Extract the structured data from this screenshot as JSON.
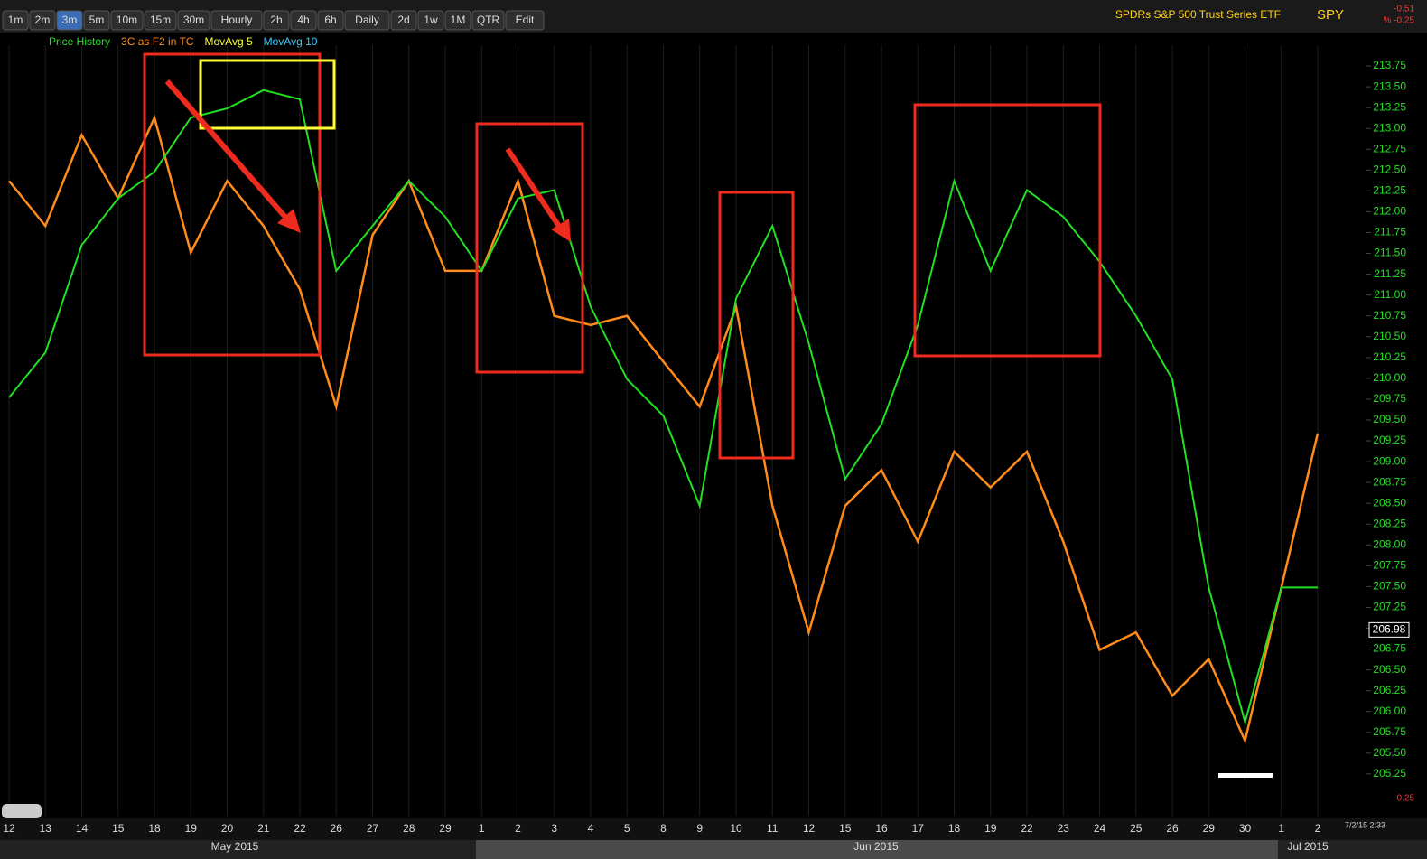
{
  "toolbar": {
    "buttons": [
      "1m",
      "2m",
      "3m",
      "5m",
      "10m",
      "15m",
      "30m",
      "Hourly",
      "2h",
      "4h",
      "6h",
      "Daily",
      "2d",
      "1w",
      "1M",
      "QTR",
      "Edit"
    ]
  },
  "header": {
    "title": "SPDRs S&P 500 Trust Series ETF",
    "symbol": "SPY",
    "change": "-0.51",
    "change_pct": "% -0.25",
    "scale_note": "0.25",
    "timestamp": "7/2/15 2:33"
  },
  "chart_data": {
    "type": "line",
    "categories": [
      "12",
      "13",
      "14",
      "15",
      "18",
      "19",
      "20",
      "21",
      "22",
      "26",
      "27",
      "28",
      "29",
      "1",
      "2",
      "3",
      "4",
      "5",
      "8",
      "9",
      "10",
      "11",
      "12",
      "15",
      "16",
      "17",
      "18",
      "19",
      "22",
      "23",
      "24",
      "25",
      "26",
      "29",
      "30",
      "1",
      "2"
    ],
    "months": [
      "May 2015",
      "Jun 2015",
      "Jul 2015"
    ],
    "series": [
      {
        "name": "Price History",
        "color": "#22e022",
        "values": [
          209.77,
          210.31,
          211.6,
          212.16,
          212.48,
          213.13,
          213.24,
          213.46,
          213.35,
          211.29,
          211.83,
          212.37,
          211.94,
          211.29,
          212.16,
          212.26,
          210.86,
          209.99,
          209.55,
          208.47,
          210.96,
          211.83,
          210.42,
          208.79,
          209.45,
          210.64,
          212.37,
          211.29,
          212.26,
          211.94,
          211.4,
          210.75,
          209.99,
          207.49,
          205.87,
          207.49,
          207.49
        ]
      },
      {
        "name": "3C as F2 in TC",
        "color": "#ff8c1a",
        "values": [
          212.37,
          211.83,
          212.92,
          212.16,
          213.13,
          211.51,
          212.37,
          211.83,
          211.07,
          209.66,
          211.72,
          212.37,
          211.29,
          211.29,
          212.37,
          210.75,
          210.64,
          210.75,
          210.2,
          209.66,
          210.86,
          208.47,
          206.95,
          208.47,
          208.9,
          208.04,
          209.12,
          208.69,
          209.12,
          208.04,
          206.74,
          206.95,
          206.19,
          206.63,
          205.65,
          207.49,
          209.34
        ]
      }
    ],
    "indicators": [
      {
        "name": "MovAvg 5",
        "color": "#ffff33"
      },
      {
        "name": "MovAvg 10",
        "color": "#33ccff"
      }
    ],
    "last_price": 206.98,
    "ylim": [
      204.75,
      214.0
    ],
    "yticks": [
      205.25,
      {
        "value": 205.5,
        "label": "205.50"
      },
      205.75,
      {
        "value": 206,
        "label": "206.00"
      },
      206.25,
      {
        "value": 206.5,
        "label": "206.50"
      },
      206.75,
      {
        "value": 207,
        "label": "207.00"
      },
      207.25,
      {
        "value": 207.5,
        "label": "207.50"
      },
      207.75,
      {
        "value": 208,
        "label": "208.00"
      },
      208.25,
      {
        "value": 208.5,
        "label": "208.50"
      },
      208.75,
      {
        "value": 209,
        "label": "209.00"
      },
      209.25,
      {
        "value": 209.5,
        "label": "209.50"
      },
      209.75,
      {
        "value": 210,
        "label": "210.00"
      },
      210.25,
      {
        "value": 210.5,
        "label": "210.50"
      },
      210.75,
      {
        "value": 211,
        "label": "211.00"
      },
      211.25,
      {
        "value": 211.5,
        "label": "211.50"
      },
      211.75,
      {
        "value": 212,
        "label": "212.00"
      },
      212.25,
      {
        "value": 212.5,
        "label": "212.50"
      },
      212.75,
      {
        "value": 213,
        "label": "213.00"
      },
      213.25,
      {
        "value": 213.5,
        "label": "213.50"
      },
      213.75
    ],
    "xgrid": true
  }
}
